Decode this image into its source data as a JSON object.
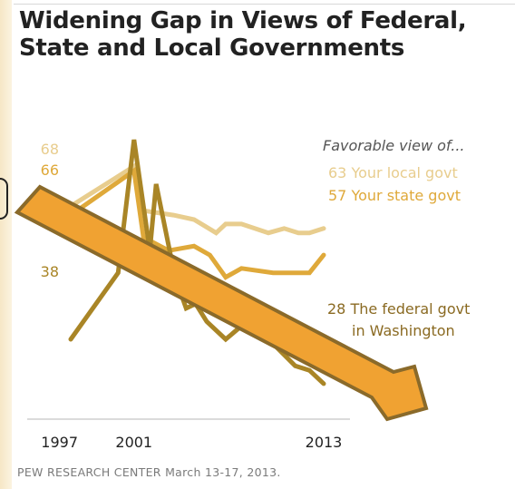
{
  "title": "Widening Gap in Views of Federal, State and Local Governments",
  "source": "PEW RESEARCH  CENTER March 13-17, 2013.",
  "colors": {
    "local": "#e8cd8e",
    "state": "#dfa93a",
    "federal": "#a98526",
    "arrow_fill": "#f0a232",
    "arrow_stroke": "#8a6a2a",
    "text_dark": "#222222",
    "text_muted": "#7a7a7a"
  },
  "chart_data": {
    "type": "line",
    "legend_heading": "Favorable view of...",
    "x_ticks": [
      "1997",
      "2001",
      "2013"
    ],
    "xlim": [
      1997,
      2013
    ],
    "ylim": [
      20,
      92
    ],
    "series": [
      {
        "key": "local",
        "name": "Your local govt",
        "start_label": "68",
        "end_label": "63",
        "points": [
          [
            1997,
            68
          ],
          [
            2001,
            77
          ],
          [
            2001.6,
            67
          ],
          [
            2003.5,
            66
          ],
          [
            2004.8,
            65
          ],
          [
            2006.2,
            62
          ],
          [
            2006.8,
            64
          ],
          [
            2007.8,
            64
          ],
          [
            2009.5,
            62
          ],
          [
            2010.5,
            63
          ],
          [
            2011.4,
            62
          ],
          [
            2012.1,
            62
          ],
          [
            2013,
            63
          ]
        ]
      },
      {
        "key": "state",
        "name": "Your state govt",
        "start_label": "66",
        "end_label": "57",
        "points": [
          [
            1997,
            66
          ],
          [
            2001,
            76
          ],
          [
            2001.6,
            61
          ],
          [
            2003.2,
            58
          ],
          [
            2004.8,
            59
          ],
          [
            2005.8,
            57
          ],
          [
            2006.8,
            52
          ],
          [
            2007.8,
            54
          ],
          [
            2009.8,
            53
          ],
          [
            2011.2,
            53
          ],
          [
            2012.1,
            53
          ],
          [
            2013,
            57
          ]
        ]
      },
      {
        "key": "federal",
        "name": "The federal govt in Washington",
        "start_label": "38",
        "end_label": "28",
        "points": [
          [
            1997,
            38
          ],
          [
            1999,
            48
          ],
          [
            2000,
            53
          ],
          [
            2001,
            83
          ],
          [
            2002,
            58
          ],
          [
            2002.4,
            73
          ],
          [
            2003.6,
            52
          ],
          [
            2004.3,
            45
          ],
          [
            2004.9,
            46
          ],
          [
            2005.6,
            42
          ],
          [
            2006.8,
            38
          ],
          [
            2007.8,
            41
          ],
          [
            2008.8,
            42
          ],
          [
            2009.8,
            37
          ],
          [
            2011.2,
            32
          ],
          [
            2012.1,
            31
          ],
          [
            2013,
            28
          ]
        ]
      }
    ]
  }
}
